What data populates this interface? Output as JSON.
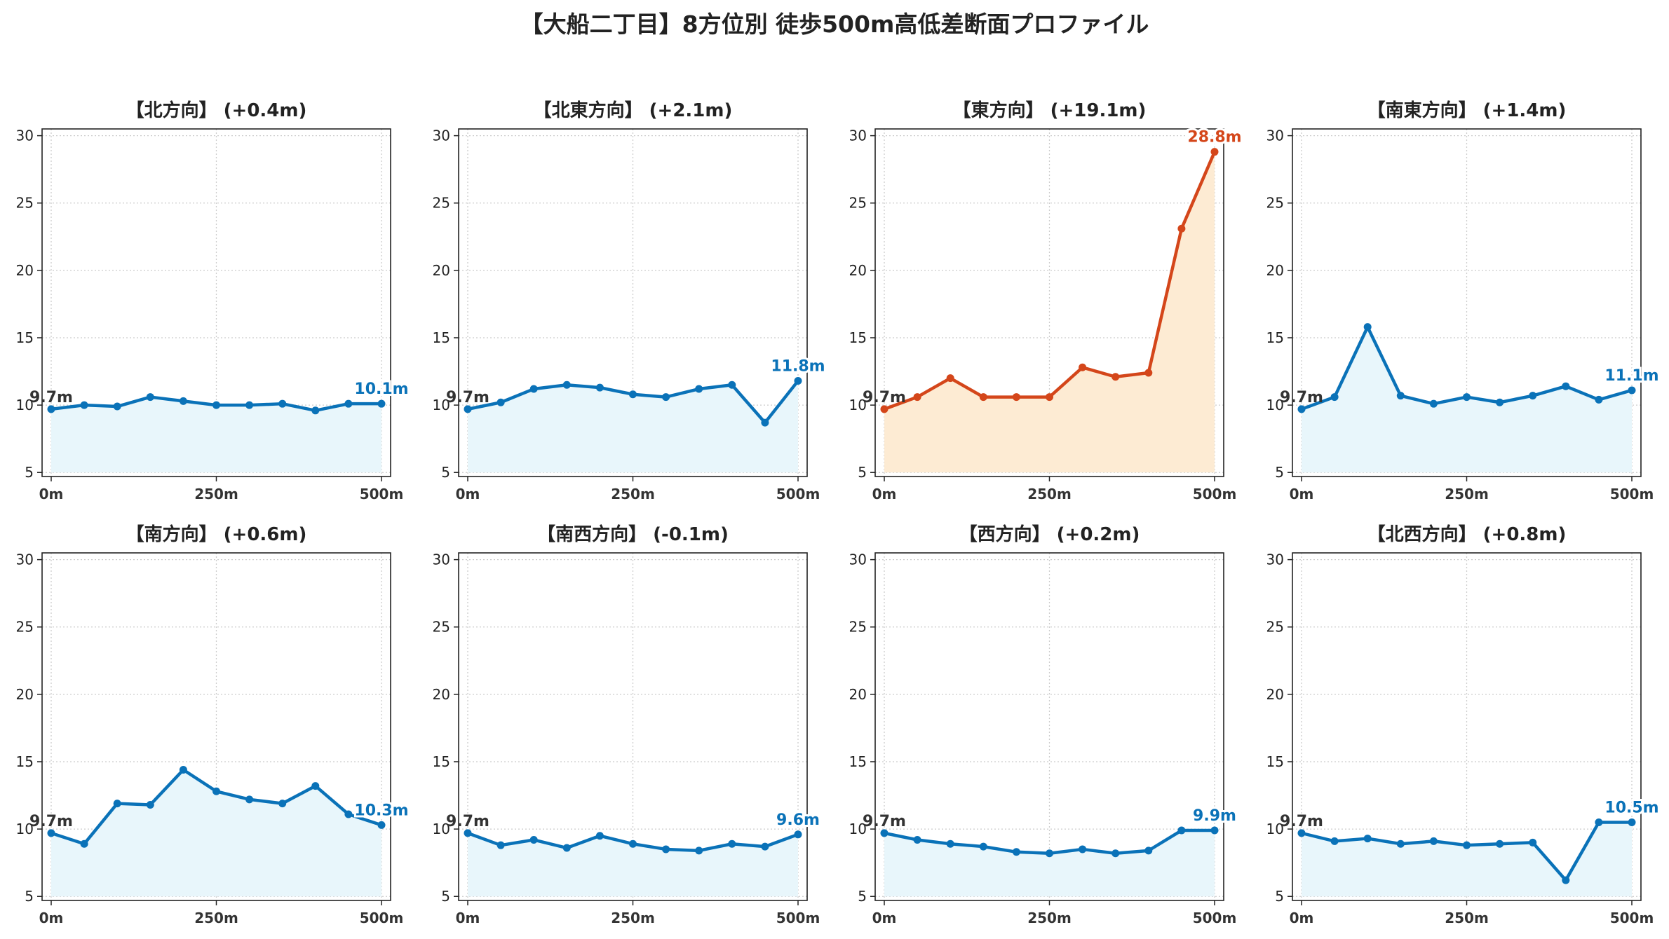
{
  "title": "【大船二丁目】8方位別 徒歩500m高低差断面プロファイル",
  "colors": {
    "normal_line": "#0a72b8",
    "normal_fill": "#e8f6fb",
    "highlight_line": "#d4461a",
    "highlight_fill": "#fdebd3",
    "start_label": "#333333",
    "grid": "#cccccc"
  },
  "chart_data": [
    {
      "type": "area",
      "title": "【北方向】 (+0.4m)",
      "x": [
        0,
        50,
        100,
        150,
        200,
        250,
        300,
        350,
        400,
        450,
        500
      ],
      "xticks": [
        "0m",
        "250m",
        "500m"
      ],
      "ylim": [
        4.7,
        30.5
      ],
      "yticks": [
        5,
        10,
        15,
        20,
        25,
        30
      ],
      "grid": true,
      "highlight": false,
      "values": [
        9.7,
        10.0,
        9.9,
        10.6,
        10.3,
        10.0,
        10.0,
        10.1,
        9.6,
        10.1,
        10.1
      ],
      "start_label": "9.7m",
      "end_label": "10.1m"
    },
    {
      "type": "area",
      "title": "【北東方向】 (+2.1m)",
      "x": [
        0,
        50,
        100,
        150,
        200,
        250,
        300,
        350,
        400,
        450,
        500
      ],
      "xticks": [
        "0m",
        "250m",
        "500m"
      ],
      "ylim": [
        4.7,
        30.5
      ],
      "yticks": [
        5,
        10,
        15,
        20,
        25,
        30
      ],
      "grid": true,
      "highlight": false,
      "values": [
        9.7,
        10.2,
        11.2,
        11.5,
        11.3,
        10.8,
        10.6,
        11.2,
        11.5,
        8.7,
        11.8
      ],
      "start_label": "9.7m",
      "end_label": "11.8m"
    },
    {
      "type": "area",
      "title": "【東方向】 (+19.1m)",
      "x": [
        0,
        50,
        100,
        150,
        200,
        250,
        300,
        350,
        400,
        450,
        500
      ],
      "xticks": [
        "0m",
        "250m",
        "500m"
      ],
      "ylim": [
        4.7,
        30.5
      ],
      "yticks": [
        5,
        10,
        15,
        20,
        25,
        30
      ],
      "grid": true,
      "highlight": true,
      "values": [
        9.7,
        10.6,
        12.0,
        10.6,
        10.6,
        10.6,
        12.8,
        12.1,
        12.4,
        23.1,
        28.8
      ],
      "start_label": "9.7m",
      "end_label": "28.8m"
    },
    {
      "type": "area",
      "title": "【南東方向】 (+1.4m)",
      "x": [
        0,
        50,
        100,
        150,
        200,
        250,
        300,
        350,
        400,
        450,
        500
      ],
      "xticks": [
        "0m",
        "250m",
        "500m"
      ],
      "ylim": [
        4.7,
        30.5
      ],
      "yticks": [
        5,
        10,
        15,
        20,
        25,
        30
      ],
      "grid": true,
      "highlight": false,
      "values": [
        9.7,
        10.6,
        15.8,
        10.7,
        10.1,
        10.6,
        10.2,
        10.7,
        11.4,
        10.4,
        11.1
      ],
      "start_label": "9.7m",
      "end_label": "11.1m"
    },
    {
      "type": "area",
      "title": "【南方向】 (+0.6m)",
      "x": [
        0,
        50,
        100,
        150,
        200,
        250,
        300,
        350,
        400,
        450,
        500
      ],
      "xticks": [
        "0m",
        "250m",
        "500m"
      ],
      "ylim": [
        4.7,
        30.5
      ],
      "yticks": [
        5,
        10,
        15,
        20,
        25,
        30
      ],
      "grid": true,
      "highlight": false,
      "values": [
        9.7,
        8.9,
        11.9,
        11.8,
        14.4,
        12.8,
        12.2,
        11.9,
        13.2,
        11.1,
        10.3
      ],
      "start_label": "9.7m",
      "end_label": "10.3m"
    },
    {
      "type": "area",
      "title": "【南西方向】 (-0.1m)",
      "x": [
        0,
        50,
        100,
        150,
        200,
        250,
        300,
        350,
        400,
        450,
        500
      ],
      "xticks": [
        "0m",
        "250m",
        "500m"
      ],
      "ylim": [
        4.7,
        30.5
      ],
      "yticks": [
        5,
        10,
        15,
        20,
        25,
        30
      ],
      "grid": true,
      "highlight": false,
      "values": [
        9.7,
        8.8,
        9.2,
        8.6,
        9.5,
        8.9,
        8.5,
        8.4,
        8.9,
        8.7,
        9.6
      ],
      "start_label": "9.7m",
      "end_label": "9.6m"
    },
    {
      "type": "area",
      "title": "【西方向】 (+0.2m)",
      "x": [
        0,
        50,
        100,
        150,
        200,
        250,
        300,
        350,
        400,
        450,
        500
      ],
      "xticks": [
        "0m",
        "250m",
        "500m"
      ],
      "ylim": [
        4.7,
        30.5
      ],
      "yticks": [
        5,
        10,
        15,
        20,
        25,
        30
      ],
      "grid": true,
      "highlight": false,
      "values": [
        9.7,
        9.2,
        8.9,
        8.7,
        8.3,
        8.2,
        8.5,
        8.2,
        8.4,
        9.9,
        9.9
      ],
      "start_label": "9.7m",
      "end_label": "9.9m"
    },
    {
      "type": "area",
      "title": "【北西方向】 (+0.8m)",
      "x": [
        0,
        50,
        100,
        150,
        200,
        250,
        300,
        350,
        400,
        450,
        500
      ],
      "xticks": [
        "0m",
        "250m",
        "500m"
      ],
      "ylim": [
        4.7,
        30.5
      ],
      "yticks": [
        5,
        10,
        15,
        20,
        25,
        30
      ],
      "grid": true,
      "highlight": false,
      "values": [
        9.7,
        9.1,
        9.3,
        8.9,
        9.1,
        8.8,
        8.9,
        9.0,
        6.2,
        10.5,
        10.5
      ],
      "start_label": "9.7m",
      "end_label": "10.5m"
    }
  ]
}
